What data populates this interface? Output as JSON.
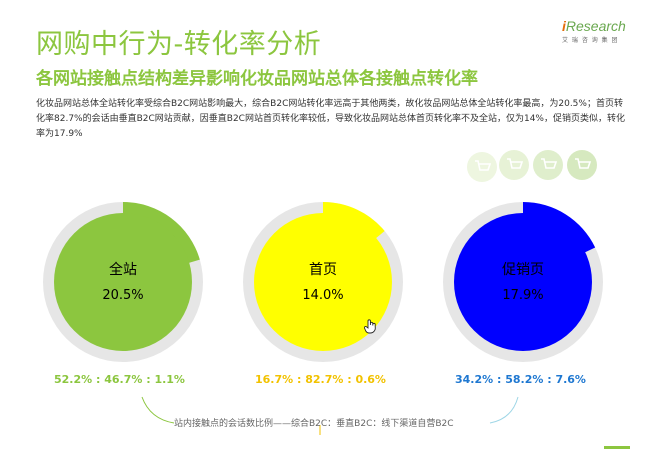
{
  "header": {
    "title": "网购中行为-转化率分析",
    "subtitle": "各网站接触点结构差异影响化妆品网站总体各接触点转化率",
    "description": "化妆品网站总体全站转化率受综合B2C网站影响最大，综合B2C网站转化率远高于其他两类，故化妆品网站总体全站转化率最高，为20.5%；首页转化率82.7%的会话由垂直B2C网站贡献，因垂直B2C网站首页转化率较低，导致化妆品网站总体首页转化率不及全站，仅为14%，促销页类似，转化率为17.9%"
  },
  "logo": {
    "brand_prefix": "i",
    "brand_rest": "Research",
    "tagline": "艾 瑞 咨 询 集 团"
  },
  "colors": {
    "green": "#8cc63f",
    "yellow": "#ffff00",
    "blue": "#0000ff",
    "ring": "#e6e6e6"
  },
  "chart_data": {
    "type": "pie",
    "charts": [
      {
        "label": "全站",
        "value": 20.5,
        "value_text": "20.5%",
        "color": "#8cc63f",
        "ratio": "52.2% : 46.7% : 1.1%"
      },
      {
        "label": "首页",
        "value": 14.0,
        "value_text": "14.0%",
        "color": "#ffff00",
        "ratio": "16.7% : 82.7% : 0.6%"
      },
      {
        "label": "促销页",
        "value": 17.9,
        "value_text": "17.9%",
        "color": "#0000ff",
        "ratio": "34.2% : 58.2% : 7.6%"
      }
    ],
    "footnote": "站内接触点的会话数比例——综合B2C：垂直B2C：线下渠道自营B2C"
  }
}
